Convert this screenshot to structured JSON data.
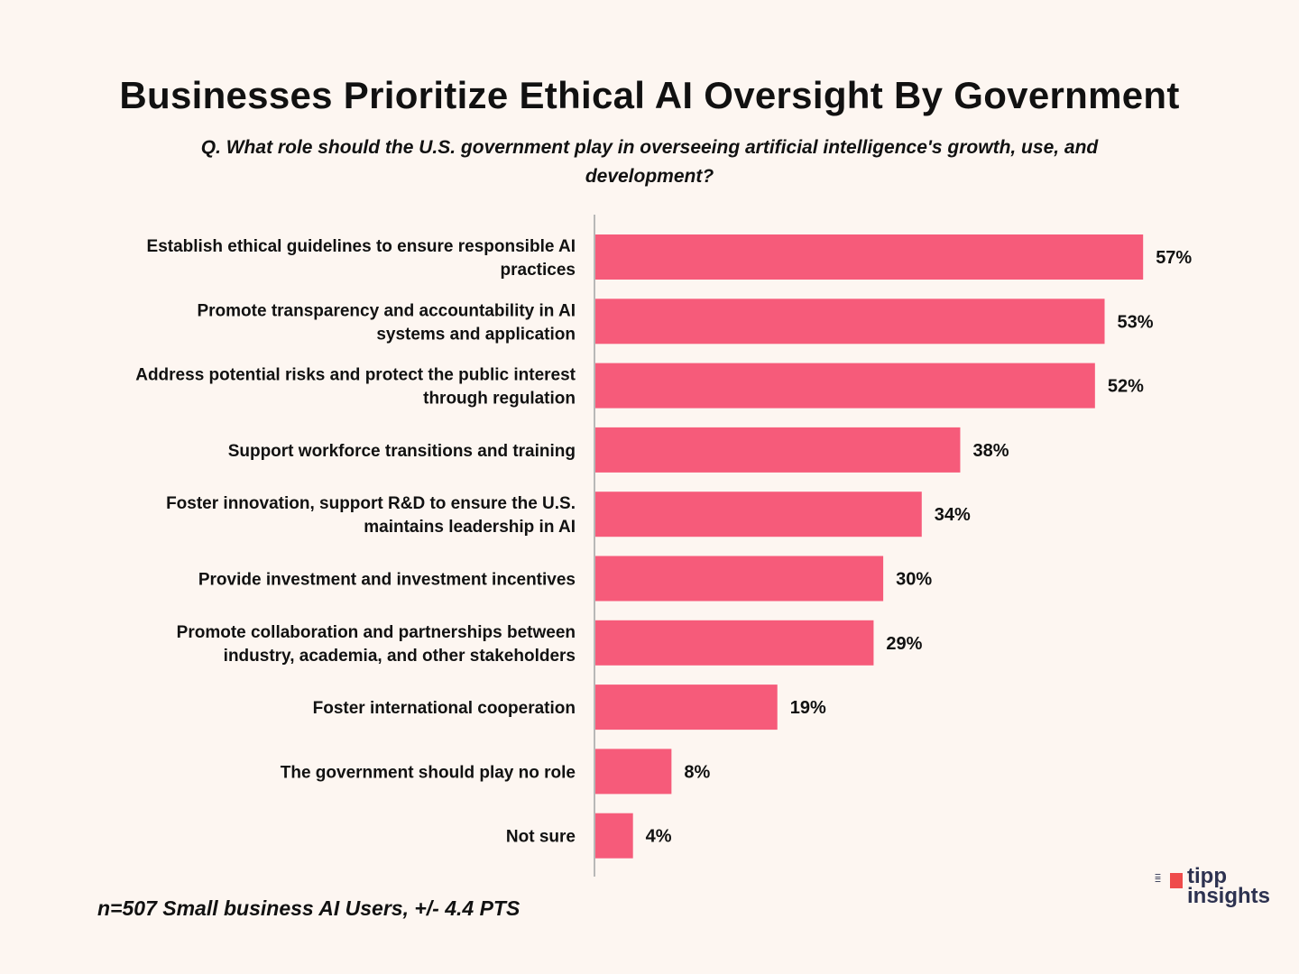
{
  "chart_data": {
    "type": "bar",
    "orientation": "horizontal",
    "title": "Businesses Prioritize Ethical AI Oversight By Government",
    "subtitle": "Q. What role should the U.S. government play in overseeing artificial intelligence's growth, use, and development?",
    "categories": [
      [
        "Establish ethical guidelines to ensure responsible AI",
        "practices"
      ],
      [
        "Promote transparency and accountability in AI",
        "systems and application"
      ],
      [
        "Address potential risks and protect the public interest",
        "through regulation"
      ],
      [
        "Support workforce transitions and training"
      ],
      [
        "Foster innovation, support R&D to ensure the U.S.",
        "maintains leadership in AI"
      ],
      [
        "Provide investment and investment incentives"
      ],
      [
        "Promote collaboration and partnerships between",
        "industry, academia, and other stakeholders"
      ],
      [
        "Foster international cooperation"
      ],
      [
        "The government should play no role"
      ],
      [
        "Not sure"
      ]
    ],
    "values": [
      57,
      53,
      52,
      38,
      34,
      30,
      29,
      19,
      8,
      4
    ],
    "value_labels": [
      "57%",
      "53%",
      "52%",
      "38%",
      "34%",
      "30%",
      "29%",
      "19%",
      "8%",
      "4%"
    ],
    "xlim": [
      0,
      60
    ],
    "grid": false,
    "legend": "none",
    "bar_color": "#f65b7a",
    "axis_color": "#b8b8b8"
  },
  "footnote": "n=507 Small business AI Users, +/- 4.4 PTS",
  "logo": {
    "line1": "tipp",
    "line2": "insights",
    "flag_color": "#ef4b4b",
    "text_color": "#2d3250"
  }
}
